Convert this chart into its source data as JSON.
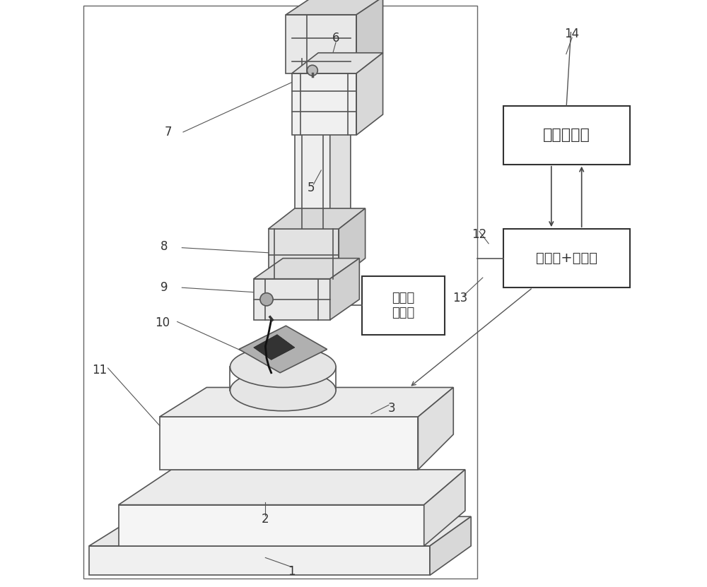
{
  "bg_color": "#ffffff",
  "line_color": "#555555",
  "box_line_color": "#333333",
  "label_color": "#333333",
  "box1_label": "上位机软件",
  "box2_label": "驱动器+控制器",
  "hv_label": "高压直\n流电源"
}
